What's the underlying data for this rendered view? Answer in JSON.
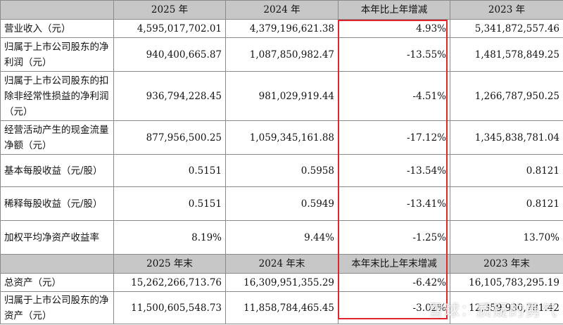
{
  "headers1": [
    "",
    "2025 年",
    "2024 年",
    "本年比上年增减",
    "2023 年"
  ],
  "rows1": [
    {
      "label": "营业收入（元）",
      "v2025": "4,595,017,702.01",
      "v2024": "4,379,196,621.38",
      "chg": "4.93%",
      "v2023": "5,341,872,557.46"
    },
    {
      "label": "归属于上市公司股东的净利润（元）",
      "v2025": "940,400,665.87",
      "v2024": "1,087,850,982.47",
      "chg": "-13.55%",
      "v2023": "1,481,578,849.25"
    },
    {
      "label": "归属于上市公司股东的扣除非经常性损益的净利润（元）",
      "v2025": "936,794,228.45",
      "v2024": "981,029,919.44",
      "chg": "-4.51%",
      "v2023": "1,266,787,950.25"
    },
    {
      "label": "经营活动产生的现金流量净额（元）",
      "v2025": "877,956,500.25",
      "v2024": "1,059,345,161.88",
      "chg": "-17.12%",
      "v2023": "1,345,838,781.04"
    },
    {
      "label": "基本每股收益（元/股）",
      "v2025": "0.5151",
      "v2024": "0.5958",
      "chg": "-13.54%",
      "v2023": "0.8121"
    },
    {
      "label": "稀释每股收益（元/股）",
      "v2025": "0.5151",
      "v2024": "0.5949",
      "chg": "-13.41%",
      "v2023": "0.8121"
    },
    {
      "label": "加权平均净资产收益率",
      "v2025": "8.19%",
      "v2024": "9.44%",
      "chg": "-1.25%",
      "v2023": "13.70%"
    }
  ],
  "headers2": [
    "",
    "2025 年末",
    "2024 年末",
    "本年末比上年末增减",
    "2023 年末"
  ],
  "rows2": [
    {
      "label": "总资产（元）",
      "v2025": "15,262,266,713.76",
      "v2024": "16,309,951,355.29",
      "chg": "-6.42%",
      "v2023": "16,105,783,295.19"
    },
    {
      "label": "归属于上市公司股东的净资产（元）",
      "v2025": "11,500,605,548.73",
      "v2024": "11,858,784,465.45",
      "chg": "-3.02%",
      "v2023": "12,359,930,781.42"
    }
  ],
  "watermark": "雪球：质疑的勇气",
  "colors": {
    "header_bg": "#c7c7c7",
    "highlight": "#e0262a"
  }
}
